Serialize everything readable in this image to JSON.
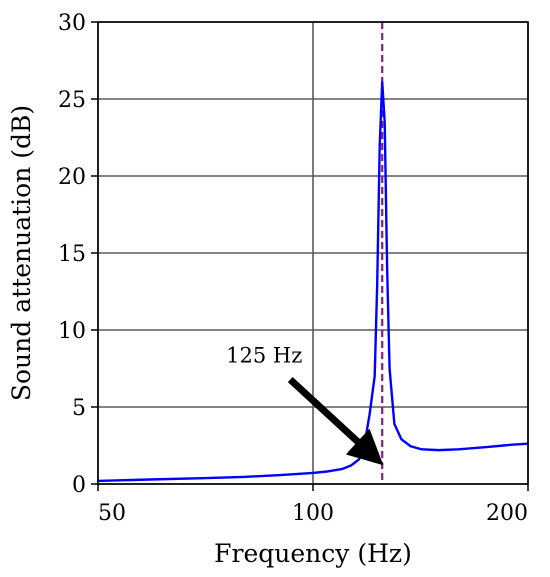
{
  "chart_data": {
    "type": "line",
    "title": "",
    "xlabel": "Frequency (Hz)",
    "ylabel": "Sound attenuation (dB)",
    "xscale": "log",
    "xlim": [
      50,
      200
    ],
    "ylim": [
      0,
      30
    ],
    "xticks": [
      50,
      100,
      200
    ],
    "xtick_labels": [
      "50",
      "100",
      "200"
    ],
    "yticks": [
      0,
      5,
      10,
      15,
      20,
      25,
      30
    ],
    "ytick_labels": [
      "0",
      "5",
      "10",
      "15",
      "20",
      "25",
      "30"
    ],
    "grid": true,
    "series": [
      {
        "color": "#0000ff",
        "x": [
          50,
          60,
          70,
          80,
          90,
          100,
          105,
          110,
          113,
          116,
          118,
          120,
          122,
          123,
          124,
          125,
          126,
          127,
          128,
          130,
          133,
          137,
          142,
          150,
          160,
          175,
          190,
          200
        ],
        "y": [
          0.2,
          0.3,
          0.38,
          0.46,
          0.58,
          0.72,
          0.82,
          0.98,
          1.2,
          1.6,
          2.5,
          4.5,
          7.0,
          13.0,
          22.0,
          26.1,
          23.5,
          14.0,
          7.5,
          3.9,
          2.9,
          2.45,
          2.25,
          2.2,
          2.25,
          2.4,
          2.55,
          2.62
        ]
      }
    ],
    "vline": {
      "x": 125,
      "color": "#8b1a8b",
      "style": "dashed"
    },
    "annotation": {
      "text": "125 Hz",
      "target": [
        125,
        1.2
      ]
    }
  }
}
